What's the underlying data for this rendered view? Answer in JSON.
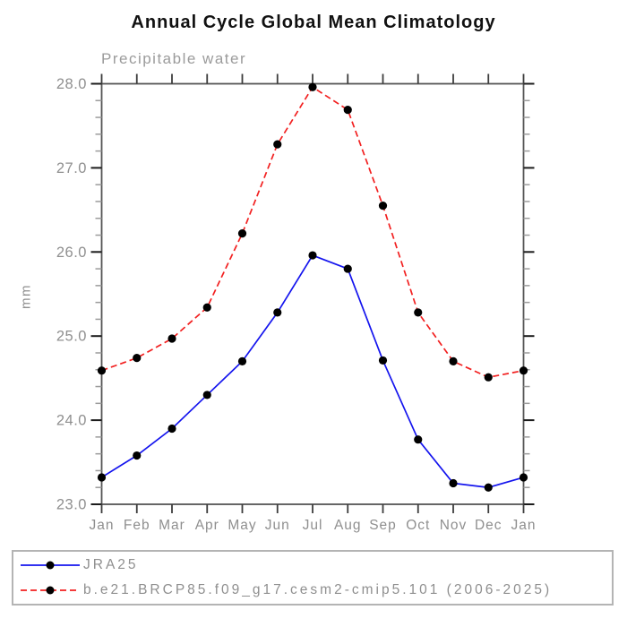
{
  "title": "Annual Cycle Global Mean Climatology",
  "subtitle": "Precipitable water",
  "ylabel": "mm",
  "chart_data": {
    "type": "line",
    "x_categories": [
      "Jan",
      "Feb",
      "Mar",
      "Apr",
      "May",
      "Jun",
      "Jul",
      "Aug",
      "Sep",
      "Oct",
      "Nov",
      "Dec",
      "Jan"
    ],
    "xlabel": "",
    "ylabel": "mm",
    "ylim": [
      23.0,
      28.0
    ],
    "yticks": [
      23.0,
      24.0,
      25.0,
      26.0,
      27.0,
      28.0
    ],
    "ytick_labels": [
      "23.0",
      "24.0",
      "25.0",
      "26.0",
      "27.0",
      "28.0"
    ],
    "y_minor_tick_step": 0.2,
    "grid": false,
    "legend_position": "bottom-left-box",
    "series": [
      {
        "name": "JRA25",
        "color": "#1414ee",
        "line_style": "solid",
        "marker": "filled-black-circle",
        "values": [
          23.32,
          23.58,
          23.9,
          24.3,
          24.7,
          25.28,
          25.96,
          25.8,
          24.71,
          23.77,
          23.25,
          23.2,
          23.32
        ]
      },
      {
        "name": "b.e21.BRCP85.f09_g17.cesm2-cmip5.101 (2006-2025)",
        "color": "#f22020",
        "line_style": "dashed",
        "marker": "filled-black-circle",
        "values": [
          24.59,
          24.74,
          24.97,
          25.34,
          26.22,
          27.28,
          27.96,
          27.69,
          26.55,
          25.28,
          24.7,
          24.51,
          24.59
        ]
      }
    ]
  },
  "colors": {
    "background": "#ffffff",
    "title_text": "#111111",
    "axis_text": "#8f8f8f",
    "axis_frame": "#555555",
    "major_tick": "#1c1c1c",
    "minor_tick": "#9c9c9c",
    "month_tick": "#3c3c3c",
    "marker": "#000000",
    "legend_border": "#b4b4b4"
  }
}
